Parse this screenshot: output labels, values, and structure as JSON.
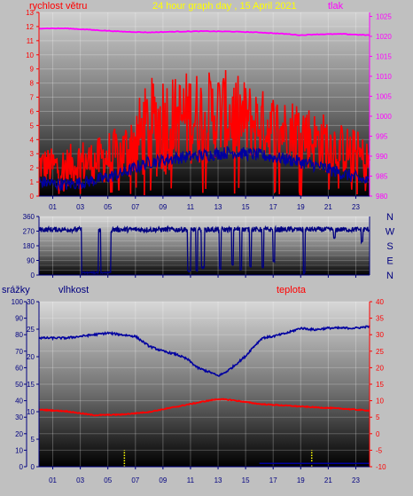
{
  "header": {
    "left_label": "rychlost větru",
    "title": "24 hour graph day , 15 April 2021",
    "right_label": "tlak"
  },
  "colors": {
    "background": "#c0c0c0",
    "wind": "#ff0000",
    "gust_low": "#0000a0",
    "pressure": "#ff00ff",
    "direction": "#000080",
    "humidity": "#0000a0",
    "temperature": "#ff0000",
    "rain": "#ffff00",
    "title": "#ffff00",
    "compass": "#000080"
  },
  "x_ticks": [
    "01",
    "03",
    "05",
    "07",
    "09",
    "11",
    "13",
    "15",
    "17",
    "19",
    "21",
    "23"
  ],
  "chart_data": [
    {
      "type": "line",
      "name": "wind-pressure",
      "x_range": [
        0,
        24
      ],
      "y_left": {
        "label": "rychlost větru",
        "ticks": [
          0,
          1,
          2,
          3,
          4,
          5,
          6,
          7,
          8,
          9,
          10,
          11,
          12,
          13
        ],
        "range": [
          0,
          13
        ]
      },
      "y_right": {
        "label": "tlak",
        "ticks": [
          980,
          985,
          990,
          995,
          1000,
          1005,
          1010,
          1015,
          1020,
          1025
        ],
        "range": [
          980,
          1026
        ]
      },
      "wind_profile": {
        "hours": [
          0,
          1,
          2,
          3,
          4,
          5,
          6,
          7,
          8,
          9,
          10,
          11,
          12,
          13,
          14,
          15,
          16,
          17,
          18,
          19,
          20,
          21,
          22,
          23,
          24
        ],
        "mean": [
          2.0,
          1.8,
          1.8,
          2.1,
          2.1,
          2.4,
          2.5,
          3.4,
          4.0,
          4.4,
          4.8,
          5.0,
          4.8,
          5.2,
          5.0,
          4.8,
          4.6,
          4.3,
          4.3,
          4.1,
          3.5,
          3.3,
          3.0,
          2.6,
          2.2
        ],
        "max": [
          3.6,
          3.5,
          3.6,
          4.2,
          4.0,
          4.8,
          5.0,
          6.8,
          8.4,
          9.4,
          8.6,
          9.3,
          9.0,
          9.2,
          9.0,
          8.4,
          7.8,
          7.5,
          7.0,
          7.4,
          6.2,
          6.0,
          5.2,
          4.9,
          3.8
        ]
      },
      "gust_low_profile": {
        "hours": [
          0,
          2,
          4,
          6,
          8,
          10,
          12,
          14,
          16,
          18,
          20,
          22,
          24
        ],
        "values": [
          1.0,
          0.8,
          1.1,
          1.6,
          2.4,
          2.7,
          2.9,
          3.1,
          2.9,
          2.6,
          2.2,
          1.6,
          1.0
        ]
      },
      "pressure": {
        "hours": [
          0,
          2,
          4,
          6,
          8,
          10,
          12,
          14,
          16,
          18,
          19,
          20,
          22,
          24
        ],
        "values": [
          1022.0,
          1022.0,
          1021.6,
          1021.2,
          1021.0,
          1021.2,
          1021.3,
          1021.2,
          1021.0,
          1020.6,
          1020.3,
          1020.5,
          1020.6,
          1020.3
        ]
      }
    },
    {
      "type": "line",
      "name": "wind-direction",
      "x_range": [
        0,
        24
      ],
      "y_left": {
        "ticks": [
          0,
          30,
          60,
          90,
          120,
          150,
          180,
          210,
          240,
          270,
          300,
          330,
          360
        ],
        "tick_labels": [
          0,
          90,
          180,
          270,
          360
        ],
        "range": [
          0,
          360
        ]
      },
      "compass": [
        "N",
        "W",
        "S",
        "E",
        "N"
      ],
      "baseline_deg": 280,
      "drops": [
        {
          "from": 3.1,
          "to": 4.3,
          "deg": 10
        },
        {
          "from": 4.5,
          "to": 5.2,
          "deg": 10
        },
        {
          "from": 10.8,
          "to": 11.0,
          "deg": 20
        },
        {
          "from": 11.4,
          "to": 11.5,
          "deg": 20
        },
        {
          "from": 11.8,
          "to": 12.0,
          "deg": 40
        },
        {
          "from": 13.1,
          "to": 13.2,
          "deg": 30
        },
        {
          "from": 14.0,
          "to": 14.1,
          "deg": 60
        },
        {
          "from": 14.6,
          "to": 14.7,
          "deg": 30
        },
        {
          "from": 15.3,
          "to": 15.4,
          "deg": 50
        },
        {
          "from": 16.2,
          "to": 16.3,
          "deg": 40
        },
        {
          "from": 17.0,
          "to": 17.1,
          "deg": 80
        },
        {
          "from": 19.2,
          "to": 19.3,
          "deg": 10
        },
        {
          "from": 21.4,
          "to": 21.5,
          "deg": 220
        },
        {
          "from": 23.4,
          "to": 23.5,
          "deg": 200
        }
      ]
    },
    {
      "type": "line",
      "name": "rain-humidity-temperature",
      "x_range": [
        0,
        24
      ],
      "header_labels": {
        "rain": "srážky",
        "humidity": "vlhkost",
        "temperature": "teplota"
      },
      "y_rain": {
        "ticks": [
          0,
          10,
          20,
          30,
          40,
          50,
          60,
          70,
          80,
          90,
          100
        ],
        "range": [
          0,
          100
        ]
      },
      "y_humidity": {
        "ticks": [
          0,
          5,
          10,
          15,
          20,
          25,
          30
        ],
        "range": [
          0,
          30
        ]
      },
      "y_temperature": {
        "ticks": [
          -10,
          -5,
          0,
          5,
          10,
          15,
          20,
          25,
          30,
          35,
          40
        ],
        "range": [
          -10,
          40
        ]
      },
      "humidity_line": {
        "hours": [
          0,
          1,
          2,
          3,
          4,
          5,
          6,
          7,
          8,
          9,
          10,
          10.8,
          11.5,
          12.5,
          13,
          13.5,
          14,
          15,
          15.5,
          16.2,
          17,
          18,
          19,
          20,
          21,
          22,
          23,
          24
        ],
        "values": [
          78,
          78,
          78,
          79,
          80,
          81,
          80,
          79,
          73,
          70,
          68,
          65,
          60,
          57,
          55,
          57,
          60,
          67,
          72,
          78,
          79,
          81,
          84,
          83,
          84,
          84,
          84,
          85
        ]
      },
      "temperature_line": {
        "hours": [
          0,
          2,
          4,
          6,
          8,
          10,
          12,
          13,
          14,
          16,
          18,
          20,
          22,
          24
        ],
        "values": [
          7.3,
          6.8,
          5.6,
          5.8,
          6.6,
          8.2,
          9.8,
          10.5,
          10.2,
          9.0,
          8.5,
          8.0,
          7.6,
          7.0
        ]
      },
      "rain_marks": [
        {
          "hour": 6.2,
          "height": 3
        },
        {
          "hour": 19.8,
          "height": 3
        }
      ],
      "rain_baseline": {
        "from": 16.0,
        "to": 24.0,
        "value": 0.6
      }
    }
  ]
}
